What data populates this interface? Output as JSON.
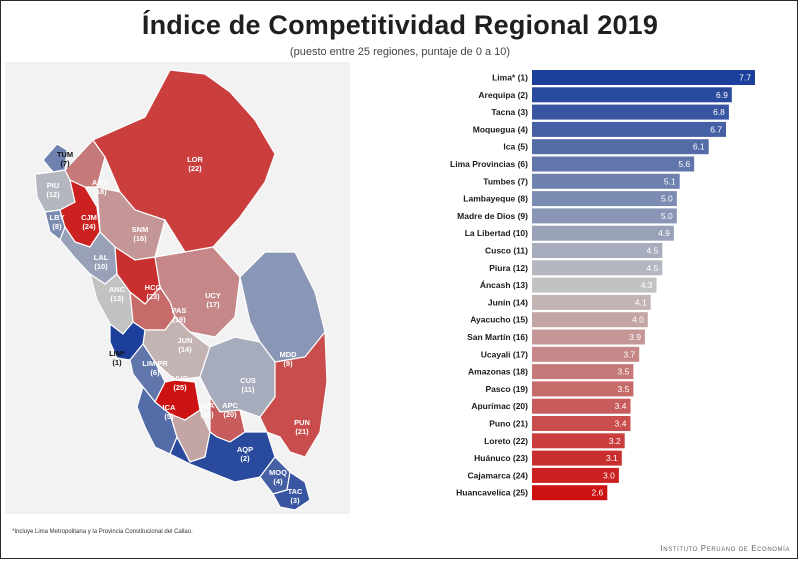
{
  "header": {
    "title": "Índice de Competitividad Regional 2019",
    "subtitle": "(puesto entre 25 regiones, puntaje de 0 a 10)"
  },
  "footnote": "*Incluye Lima Metropolitana y la Provincia Constitucional del Callao.",
  "brand": "Instituto Peruano de Economía",
  "colors": {
    "blue": "#1b3f9a",
    "gray": "#c2c2c2",
    "red": "#cc1212"
  },
  "map_labels": [
    {
      "code": "TUM",
      "rank": "(7)"
    },
    {
      "code": "PIU",
      "rank": "(12)"
    },
    {
      "code": "LBY",
      "rank": "(8)"
    },
    {
      "code": "CJM",
      "rank": "(24)"
    },
    {
      "code": "AMZ",
      "rank": "(18)"
    },
    {
      "code": "LOR",
      "rank": "(22)"
    },
    {
      "code": "SNM",
      "rank": "(16)"
    },
    {
      "code": "LAL",
      "rank": "(10)"
    },
    {
      "code": "ANC",
      "rank": "(13)"
    },
    {
      "code": "HCO",
      "rank": "(23)"
    },
    {
      "code": "UCY",
      "rank": "(17)"
    },
    {
      "code": "PAS",
      "rank": "(19)"
    },
    {
      "code": "JUN",
      "rank": "(14)"
    },
    {
      "code": "LIM*",
      "rank": "(1)"
    },
    {
      "code": "LIM PR",
      "rank": "(6)"
    },
    {
      "code": "MDD",
      "rank": "(9)"
    },
    {
      "code": "HVC",
      "rank": "(25)"
    },
    {
      "code": "CUS",
      "rank": "(11)"
    },
    {
      "code": "ICA",
      "rank": "(5)"
    },
    {
      "code": "AYA",
      "rank": "(15)"
    },
    {
      "code": "APC",
      "rank": "(20)"
    },
    {
      "code": "PUN",
      "rank": "(21)"
    },
    {
      "code": "AQP",
      "rank": "(2)"
    },
    {
      "code": "MOQ",
      "rank": "(4)"
    },
    {
      "code": "TAC",
      "rank": "(3)"
    }
  ],
  "chart_data": {
    "type": "bar",
    "orientation": "horizontal",
    "categories": [
      "Lima* (1)",
      "Arequipa (2)",
      "Tacna (3)",
      "Moquegua (4)",
      "Ica (5)",
      "Lima Provincias (6)",
      "Tumbes (7)",
      "Lambayeque (8)",
      "Madre de Dios (9)",
      "La Libertad (10)",
      "Cusco (11)",
      "Piura (12)",
      "Áncash (13)",
      "Junín (14)",
      "Ayacucho (15)",
      "San Martín (16)",
      "Ucayali (17)",
      "Amazonas (18)",
      "Pasco (19)",
      "Apurímac (20)",
      "Puno (21)",
      "Loreto (22)",
      "Huánuco (23)",
      "Cajamarca (24)",
      "Huancavelica (25)"
    ],
    "values": [
      7.7,
      6.9,
      6.8,
      6.7,
      6.1,
      5.6,
      5.1,
      5.0,
      5.0,
      4.9,
      4.5,
      4.5,
      4.3,
      4.1,
      4.0,
      3.9,
      3.7,
      3.5,
      3.5,
      3.4,
      3.4,
      3.2,
      3.1,
      3.0,
      2.6
    ],
    "value_labels": [
      "7.7",
      "6.9",
      "6.8",
      "6.7",
      "6.1",
      "5.6",
      "5.1",
      "5.0",
      "5.0",
      "4.9",
      "4.5",
      "4.5",
      "4.3",
      "4.1",
      "4.0",
      "3.9",
      "3.7",
      "3.5",
      "3.5",
      "3.4",
      "3.4",
      "3.2",
      "3.1",
      "3.0",
      "2.6"
    ],
    "xlim": [
      0,
      7.7
    ],
    "grid": false,
    "legend": "none",
    "color_scale": "blue (rank 1) to gray (middle) to red (rank 25)"
  }
}
